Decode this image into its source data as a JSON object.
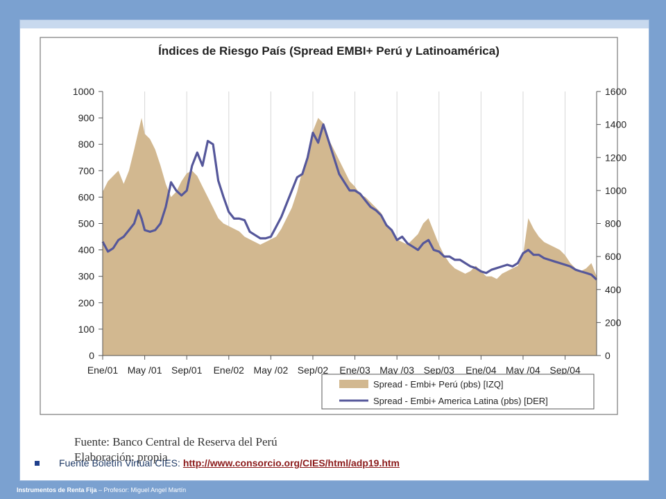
{
  "slide": {
    "source_line1": "Fuente: Banco Central de Reserva del Perú",
    "source_line2": "Elaboración: propia",
    "bullet_text": "Fuente Boletín Virtual CIES:",
    "bullet_link": "http://www.consorcio.org/CIES/html/adp19.htm",
    "footer_bold": "Instrumentos de Renta Fija",
    "footer_rest": " – Profesor: Miguel Angel Martín"
  },
  "colors": {
    "area": "#d2b890",
    "line": "#55579a",
    "frame": "#7a7a7a"
  },
  "chart_data": {
    "type": "area",
    "title": "Índices de Riesgo País (Spread EMBI+ Perú y Latinoamérica)",
    "x_ticks": [
      "Ene/01",
      "May /01",
      "Sep/01",
      "Ene/02",
      "May /02",
      "Sep/02",
      "Ene/03",
      "May /03",
      "Sep/03",
      "Ene/04",
      "May /04",
      "Sep/04"
    ],
    "x_months": [
      0,
      4,
      8,
      12,
      16,
      20,
      24,
      28,
      32,
      36,
      40,
      44
    ],
    "xlim": [
      0,
      47
    ],
    "ylim_left": [
      0,
      1000
    ],
    "ylim_right": [
      0,
      1600
    ],
    "y_ticks_left": [
      0,
      100,
      200,
      300,
      400,
      500,
      600,
      700,
      800,
      900,
      1000
    ],
    "y_ticks_right": [
      0,
      200,
      400,
      600,
      800,
      1000,
      1200,
      1400,
      1600
    ],
    "legend_position": "bottom-right",
    "series": [
      {
        "name": "Spread - Embi+ Perú (pbs) [IZQ]",
        "axis": "left",
        "x": [
          0,
          0.5,
          1,
          1.5,
          2,
          2.5,
          3,
          3.4,
          3.7,
          4,
          4.5,
          5,
          5.5,
          6,
          6.5,
          7,
          7.5,
          8,
          8.5,
          9,
          9.5,
          10,
          10.5,
          11,
          11.5,
          12,
          12.5,
          13,
          13.5,
          14,
          14.5,
          15,
          15.5,
          16,
          16.5,
          17,
          17.5,
          18,
          18.5,
          19,
          19.5,
          20,
          20.5,
          21,
          21.5,
          22,
          22.5,
          23,
          23.5,
          24,
          24.5,
          25,
          25.5,
          26,
          26.5,
          27,
          27.5,
          28,
          28.5,
          29,
          29.5,
          30,
          30.5,
          31,
          31.5,
          32,
          32.5,
          33,
          33.5,
          34,
          34.5,
          35,
          35.5,
          36,
          36.5,
          37,
          37.5,
          38,
          38.5,
          39,
          39.5,
          40,
          40.5,
          41,
          41.5,
          42,
          42.5,
          43,
          43.5,
          44,
          44.5,
          45,
          45.5,
          46,
          46.5,
          47
        ],
        "values": [
          620,
          660,
          680,
          700,
          650,
          700,
          780,
          850,
          900,
          840,
          820,
          780,
          720,
          650,
          600,
          620,
          660,
          690,
          700,
          680,
          640,
          600,
          560,
          520,
          500,
          490,
          480,
          470,
          450,
          440,
          430,
          420,
          430,
          440,
          450,
          480,
          520,
          560,
          620,
          700,
          760,
          850,
          900,
          880,
          820,
          780,
          740,
          700,
          660,
          640,
          610,
          600,
          580,
          560,
          540,
          500,
          470,
          440,
          430,
          420,
          440,
          460,
          500,
          520,
          470,
          420,
          380,
          350,
          330,
          320,
          310,
          320,
          340,
          320,
          300,
          300,
          290,
          310,
          320,
          330,
          340,
          380,
          520,
          480,
          450,
          430,
          420,
          410,
          400,
          380,
          350,
          330,
          320,
          330,
          350,
          300
        ]
      },
      {
        "name": "Spread - Embi+ America Latina (pbs) [DER]",
        "axis": "right",
        "x": [
          0,
          0.5,
          1,
          1.5,
          2,
          2.5,
          3,
          3.4,
          3.7,
          4,
          4.5,
          5,
          5.5,
          6,
          6.5,
          7,
          7.5,
          8,
          8.5,
          9,
          9.5,
          10,
          10.5,
          11,
          11.5,
          12,
          12.5,
          13,
          13.5,
          14,
          14.5,
          15,
          15.5,
          16,
          16.5,
          17,
          17.5,
          18,
          18.5,
          19,
          19.5,
          20,
          20.5,
          21,
          21.5,
          22,
          22.5,
          23,
          23.5,
          24,
          24.5,
          25,
          25.5,
          26,
          26.5,
          27,
          27.5,
          28,
          28.5,
          29,
          29.5,
          30,
          30.5,
          31,
          31.5,
          32,
          32.5,
          33,
          33.5,
          34,
          34.5,
          35,
          35.5,
          36,
          36.5,
          37,
          37.5,
          38,
          38.5,
          39,
          39.5,
          40,
          40.5,
          41,
          41.5,
          42,
          42.5,
          43,
          43.5,
          44,
          44.5,
          45,
          45.5,
          46,
          46.5,
          47
        ],
        "values": [
          690,
          630,
          650,
          700,
          720,
          760,
          800,
          880,
          830,
          760,
          750,
          760,
          800,
          900,
          1050,
          1000,
          970,
          1000,
          1150,
          1230,
          1150,
          1300,
          1280,
          1060,
          960,
          870,
          830,
          830,
          820,
          750,
          730,
          710,
          710,
          720,
          780,
          840,
          920,
          1000,
          1080,
          1100,
          1200,
          1350,
          1290,
          1400,
          1300,
          1200,
          1100,
          1050,
          1000,
          1000,
          980,
          940,
          900,
          880,
          850,
          790,
          760,
          700,
          720,
          680,
          660,
          640,
          680,
          700,
          640,
          630,
          600,
          600,
          580,
          580,
          560,
          540,
          530,
          510,
          500,
          520,
          530,
          540,
          550,
          540,
          560,
          620,
          640,
          610,
          610,
          590,
          580,
          570,
          560,
          550,
          540,
          520,
          510,
          500,
          490,
          460
        ]
      }
    ]
  }
}
